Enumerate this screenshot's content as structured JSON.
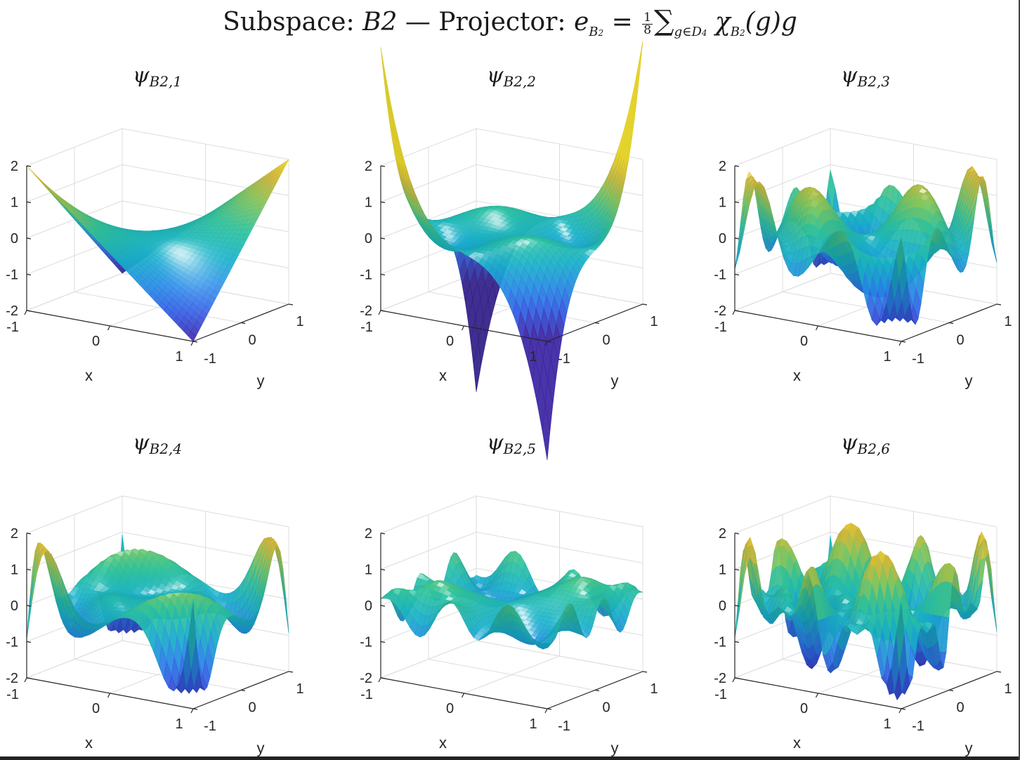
{
  "figure": {
    "title_prefix": "Subspace: ",
    "title_subspace": "B2",
    "title_mid": " — Projector: ",
    "title_e": "e",
    "title_e_sub": "B",
    "title_e_subsub": "2",
    "title_eq": " = ",
    "title_frac_num": "1",
    "title_frac_den": "8",
    "title_sum": "∑",
    "title_sum_sub": "g∈D",
    "title_sum_subsub": "4",
    "title_chi": " χ",
    "title_chi_sub": "B",
    "title_chi_subsub": "2",
    "title_tail": "(g)g"
  },
  "chart_data": [
    {
      "type": "surface",
      "title_sym": "ψ",
      "title_sub": "B2,1",
      "xlabel": "x",
      "ylabel": "y",
      "xlim": [
        -1,
        1
      ],
      "ylim": [
        -1,
        1
      ],
      "zlim": [
        -2,
        2
      ],
      "xticks": [
        "-1",
        "0",
        "1"
      ],
      "yticks": [
        "-1",
        "0",
        "1"
      ],
      "zticks": [
        "-2",
        "-1",
        "0",
        "1",
        "2"
      ],
      "grid": true,
      "colormap": "parula",
      "n": 0
    },
    {
      "type": "surface",
      "title_sym": "ψ",
      "title_sub": "B2,2",
      "xlabel": "x",
      "ylabel": "y",
      "xlim": [
        -1,
        1
      ],
      "ylim": [
        -1,
        1
      ],
      "zlim": [
        -2,
        2
      ],
      "xticks": [
        "-1",
        "0",
        "1"
      ],
      "yticks": [
        "-1",
        "0",
        "1"
      ],
      "zticks": [
        "-2",
        "-1",
        "0",
        "1",
        "2"
      ],
      "grid": true,
      "colormap": "parula",
      "n": 1
    },
    {
      "type": "surface",
      "title_sym": "ψ",
      "title_sub": "B2,3",
      "xlabel": "x",
      "ylabel": "y",
      "xlim": [
        -1,
        1
      ],
      "ylim": [
        -1,
        1
      ],
      "zlim": [
        -2,
        2
      ],
      "xticks": [
        "-1",
        "0",
        "1"
      ],
      "yticks": [
        "-1",
        "0",
        "1"
      ],
      "zticks": [
        "-2",
        "-1",
        "0",
        "1",
        "2"
      ],
      "grid": true,
      "colormap": "parula",
      "n": 2
    },
    {
      "type": "surface",
      "title_sym": "ψ",
      "title_sub": "B2,4",
      "xlabel": "x",
      "ylabel": "y",
      "xlim": [
        -1,
        1
      ],
      "ylim": [
        -1,
        1
      ],
      "zlim": [
        -2,
        2
      ],
      "xticks": [
        "-1",
        "0",
        "1"
      ],
      "yticks": [
        "-1",
        "0",
        "1"
      ],
      "zticks": [
        "-2",
        "-1",
        "0",
        "1",
        "2"
      ],
      "grid": true,
      "colormap": "parula",
      "n": 3
    },
    {
      "type": "surface",
      "title_sym": "ψ",
      "title_sub": "B2,5",
      "xlabel": "x",
      "ylabel": "y",
      "xlim": [
        -1,
        1
      ],
      "ylim": [
        -1,
        1
      ],
      "zlim": [
        -2,
        2
      ],
      "xticks": [
        "-1",
        "0",
        "1"
      ],
      "yticks": [
        "-1",
        "0",
        "1"
      ],
      "zticks": [
        "-2",
        "-1",
        "0",
        "1",
        "2"
      ],
      "grid": true,
      "colormap": "parula",
      "n": 4
    },
    {
      "type": "surface",
      "title_sym": "ψ",
      "title_sub": "B2,6",
      "xlabel": "x",
      "ylabel": "y",
      "xlim": [
        -1,
        1
      ],
      "ylim": [
        -1,
        1
      ],
      "zlim": [
        -2,
        2
      ],
      "xticks": [
        "-1",
        "0",
        "1"
      ],
      "yticks": [
        "-1",
        "0",
        "1"
      ],
      "zticks": [
        "-2",
        "-1",
        "0",
        "1",
        "2"
      ],
      "grid": true,
      "colormap": "parula",
      "n": 5
    }
  ]
}
